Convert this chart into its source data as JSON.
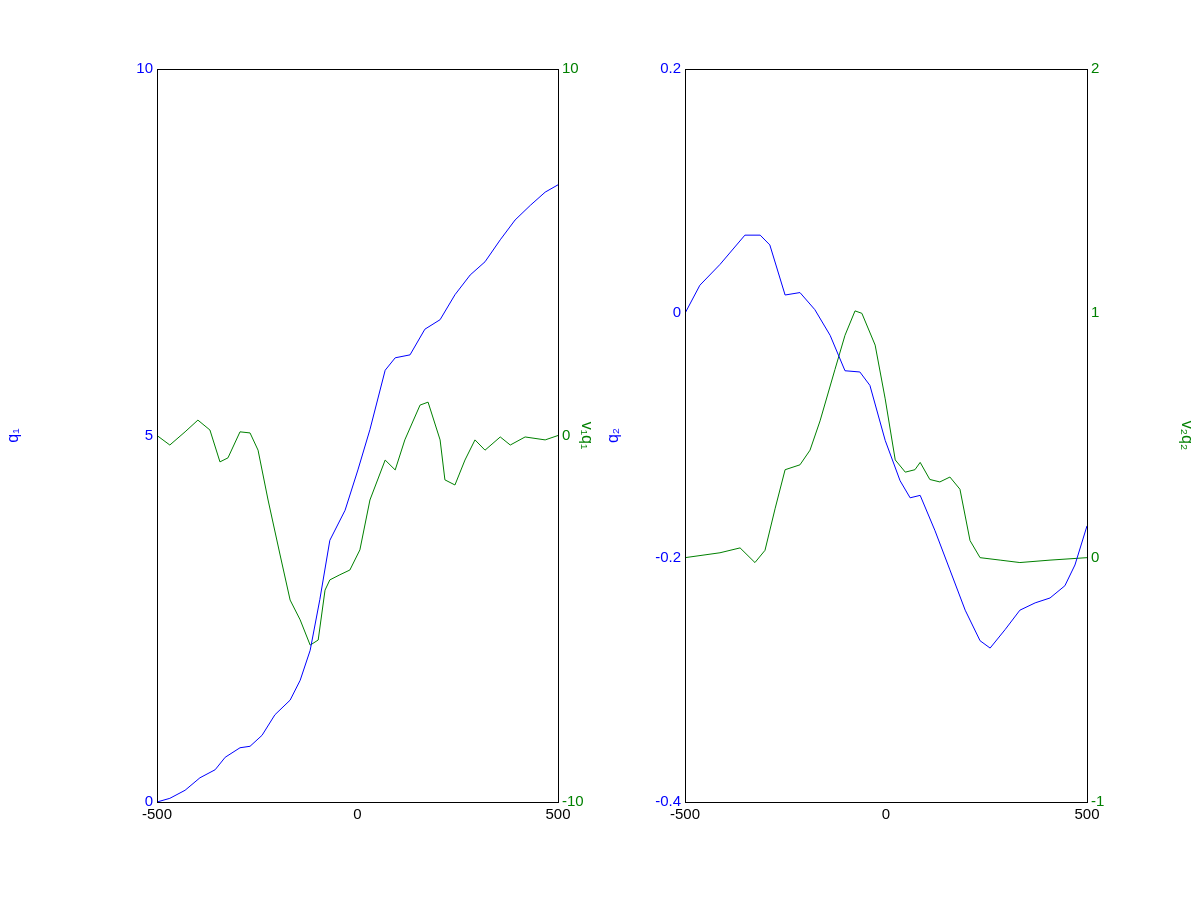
{
  "chart_data": [
    {
      "type": "line",
      "ylabel": "q₁",
      "y2label": "v₁q₁",
      "xlim": [
        -500,
        500
      ],
      "xticks": [
        -500,
        0,
        500
      ],
      "ylim": [
        0,
        10
      ],
      "yticks": [
        0,
        5,
        10
      ],
      "y2lim": [
        -10,
        10
      ],
      "y2ticks": [
        -10,
        0,
        10
      ],
      "grid": false,
      "series": [
        {
          "color": "#0000ff",
          "x": [
            -500,
            -468,
            -430,
            -393,
            -355,
            -330,
            -293,
            -268,
            -238,
            -206,
            -168,
            -143,
            -118,
            -94,
            -69,
            -31,
            1,
            31,
            69,
            94,
            131,
            168,
            206,
            243,
            281,
            318,
            356,
            393,
            431,
            468,
            500
          ],
          "values": [
            0,
            0.05,
            0.16,
            0.33,
            0.44,
            0.61,
            0.74,
            0.76,
            0.91,
            1.19,
            1.39,
            1.66,
            2.07,
            2.76,
            3.57,
            3.98,
            4.53,
            5.08,
            5.89,
            6.06,
            6.1,
            6.45,
            6.58,
            6.92,
            7.19,
            7.37,
            7.67,
            7.94,
            8.14,
            8.32,
            8.42
          ]
        },
        {
          "color": "#008000",
          "axis": "y2",
          "x": [
            -500,
            -468,
            -430,
            -398,
            -368,
            -343,
            -323,
            -293,
            -268,
            -248,
            -223,
            -193,
            -168,
            -143,
            -118,
            -98,
            -81,
            -69,
            -44,
            -19,
            6,
            31,
            69,
            94,
            118,
            156,
            176,
            206,
            218,
            243,
            268,
            293,
            318,
            356,
            381,
            418,
            468,
            500
          ],
          "values": [
            0,
            -0.26,
            0.1,
            0.42,
            0.15,
            -0.72,
            -0.61,
            0.1,
            0.07,
            -0.4,
            -1.76,
            -3.26,
            -4.49,
            -5.03,
            -5.72,
            -5.58,
            -4.22,
            -3.94,
            -3.8,
            -3.67,
            -3.12,
            -1.76,
            -0.67,
            -0.94,
            -0.12,
            0.83,
            0.91,
            -0.12,
            -1.21,
            -1.35,
            -0.67,
            -0.12,
            -0.4,
            -0.04,
            -0.26,
            -0.04,
            -0.12,
            0
          ]
        }
      ]
    },
    {
      "type": "line",
      "ylabel": "q₂",
      "y2label": "v₂q₂",
      "xlim": [
        -500,
        500
      ],
      "xticks": [
        -500,
        0,
        500
      ],
      "ylim": [
        -0.4,
        0.2
      ],
      "yticks": [
        -0.4,
        -0.2,
        0,
        0.2
      ],
      "y2lim": [
        -1,
        2
      ],
      "y2ticks": [
        -1,
        0,
        1,
        2
      ],
      "grid": false,
      "series": [
        {
          "color": "#0000ff",
          "x": [
            -500,
            -463,
            -413,
            -351,
            -313,
            -289,
            -251,
            -214,
            -177,
            -139,
            -102,
            -65,
            -40,
            -2,
            35,
            60,
            85,
            122,
            159,
            197,
            234,
            259,
            296,
            333,
            371,
            408,
            445,
            470,
            500
          ],
          "values": [
            0,
            0.023,
            0.04,
            0.064,
            0.064,
            0.056,
            0.015,
            0.017,
            0.003,
            -0.018,
            -0.047,
            -0.048,
            -0.059,
            -0.104,
            -0.137,
            -0.151,
            -0.149,
            -0.178,
            -0.21,
            -0.243,
            -0.268,
            -0.274,
            -0.259,
            -0.243,
            -0.237,
            -0.233,
            -0.223,
            -0.206,
            -0.174
          ]
        },
        {
          "color": "#008000",
          "axis": "y2",
          "x": [
            -500,
            -413,
            -363,
            -326,
            -301,
            -276,
            -251,
            -214,
            -189,
            -164,
            -127,
            -102,
            -77,
            -60,
            -27,
            -2,
            23,
            48,
            72,
            85,
            109,
            134,
            159,
            184,
            209,
            234,
            284,
            333,
            408,
            500
          ],
          "values": [
            0,
            0.02,
            0.04,
            -0.02,
            0.03,
            0.2,
            0.36,
            0.38,
            0.44,
            0.56,
            0.77,
            0.91,
            1.01,
            1.0,
            0.87,
            0.65,
            0.4,
            0.35,
            0.36,
            0.39,
            0.32,
            0.31,
            0.33,
            0.28,
            0.07,
            0,
            -0.01,
            -0.02,
            -0.01,
            0
          ]
        }
      ]
    }
  ]
}
